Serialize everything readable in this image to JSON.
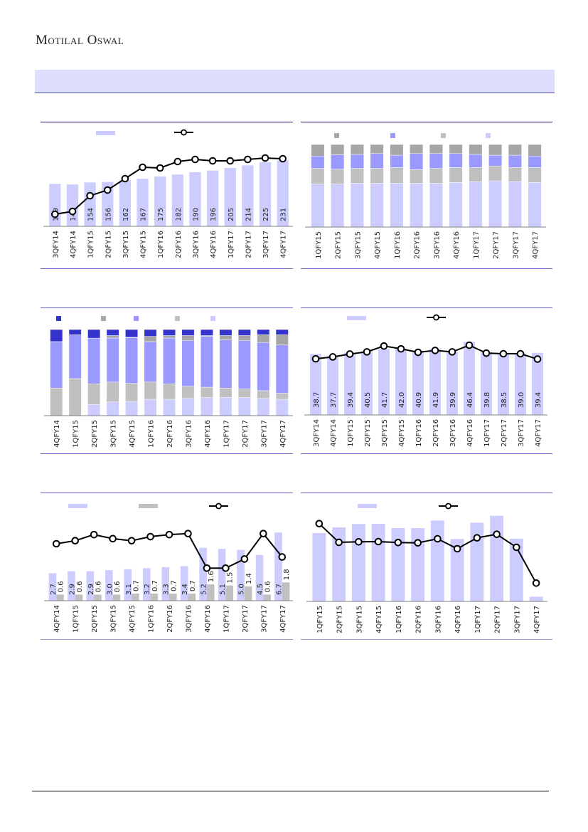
{
  "header": {
    "logo_text": "Motilal Oswal"
  },
  "colors": {
    "light_bar": "#ccccff",
    "blue": "#9999ff",
    "dark_blue": "#3333cc",
    "grey": "#c0c0c0",
    "dark_grey": "#a6a6a6",
    "line": "#000000",
    "band": "#dedeff"
  },
  "chart_data": [
    {
      "type": "bar+line",
      "categories": [
        "3QFY14",
        "4QFY14",
        "1QFY15",
        "2QFY15",
        "3QFY15",
        "4QFY15",
        "1QFY16",
        "2QFY16",
        "3QFY16",
        "4QFY16",
        "1QFY17",
        "2QFY17",
        "3QFY17",
        "4QFY17"
      ],
      "bars": [
        149,
        147,
        154,
        156,
        162,
        167,
        175,
        182,
        190,
        196,
        205,
        214,
        225,
        231
      ],
      "bar_labels": [
        "149",
        "147",
        "154",
        "156",
        "162",
        "167",
        "175",
        "182",
        "190",
        "196",
        "205",
        "214",
        "225",
        "231"
      ],
      "line": [
        17,
        21,
        43,
        51,
        67,
        83,
        82,
        91,
        94,
        92,
        92,
        94,
        96,
        95
      ],
      "ylim": [
        0,
        250
      ],
      "y2lim": [
        0,
        100
      ]
    },
    {
      "type": "stacked-bar",
      "categories": [
        "1QFY15",
        "2QFY15",
        "3QFY15",
        "4QFY15",
        "1QFY16",
        "2QFY16",
        "3QFY16",
        "4QFY16",
        "1QFY17",
        "2QFY17",
        "3QFY17",
        "4QFY17"
      ],
      "series": [
        {
          "name": "s1",
          "color": "#ccccff",
          "values": [
            52,
            52,
            53,
            53,
            53,
            53,
            53,
            54,
            55,
            56,
            55,
            54
          ]
        },
        {
          "name": "s2",
          "color": "#c0c0c0",
          "values": [
            19,
            18,
            18,
            18,
            19,
            16.5,
            18,
            18,
            17,
            18,
            17,
            18
          ]
        },
        {
          "name": "s3",
          "color": "#9999ff",
          "values": [
            15,
            17.5,
            17,
            18,
            15,
            19.5,
            18,
            17,
            16,
            13,
            15,
            14
          ]
        },
        {
          "name": "s4",
          "color": "#a6a6a6",
          "values": [
            14,
            12.5,
            12,
            11,
            13,
            11,
            11,
            11,
            12,
            13,
            13,
            14
          ]
        }
      ],
      "ylim": [
        0,
        100
      ]
    },
    {
      "type": "stacked-bar",
      "categories": [
        "4QFY14",
        "1QFY15",
        "2QFY15",
        "3QFY15",
        "4QFY15",
        "1QFY16",
        "2QFY16",
        "3QFY16",
        "4QFY16",
        "1QFY17",
        "2QFY17",
        "3QFY17",
        "4QFY17"
      ],
      "series": [
        {
          "name": "s1",
          "color": "#ccccff",
          "values": [
            0,
            0,
            13,
            16,
            16.5,
            19,
            19,
            20,
            21,
            21,
            21,
            20,
            19
          ]
        },
        {
          "name": "s2",
          "color": "#c0c0c0",
          "values": [
            32,
            43,
            24,
            23,
            21,
            20,
            18,
            14,
            12,
            11,
            10,
            9,
            7
          ]
        },
        {
          "name": "s3",
          "color": "#9999ff",
          "values": [
            54,
            51,
            53,
            51,
            53,
            47,
            53,
            53,
            59,
            56,
            56,
            56,
            56
          ]
        },
        {
          "name": "s4",
          "color": "#a6a6a6",
          "values": [
            0,
            0,
            0,
            3,
            0.5,
            6,
            3,
            6,
            1,
            5,
            6,
            9,
            12
          ]
        },
        {
          "name": "s5",
          "color": "#3333cc",
          "values": [
            14,
            6,
            10,
            7,
            9,
            8,
            7,
            7,
            7,
            7,
            7,
            6,
            6
          ]
        }
      ],
      "ylim": [
        0,
        100
      ]
    },
    {
      "type": "bar+line",
      "categories": [
        "3QFY14",
        "4QFY14",
        "1QFY15",
        "2QFY15",
        "3QFY15",
        "4QFY15",
        "1QFY16",
        "2QFY16",
        "3QFY16",
        "4QFY16",
        "1QFY17",
        "2QFY17",
        "3QFY17",
        "4QFY17"
      ],
      "bars": [
        38.7,
        37.7,
        39.4,
        40.5,
        41.7,
        42.0,
        40.9,
        41.9,
        39.9,
        46.4,
        39.8,
        38.5,
        39.0,
        39.4
      ],
      "bar_labels": [
        "38.7",
        "37.7",
        "39.4",
        "40.5",
        "41.7",
        "42.0",
        "40.9",
        "41.9",
        "39.9",
        "46.4",
        "39.8",
        "38.5",
        "39.0",
        "39.4"
      ],
      "line": [
        35.6,
        36.8,
        38.6,
        40.0,
        43.7,
        41.9,
        39.7,
        40.9,
        40.0,
        44.2,
        39.2,
        38.8,
        38.8,
        35.4
      ],
      "ylim": [
        0,
        51
      ],
      "y2lim": [
        0,
        51
      ]
    },
    {
      "type": "grouped-bar+line",
      "categories": [
        "4QFY14",
        "1QFY15",
        "2QFY15",
        "3QFY15",
        "4QFY15",
        "1QFY16",
        "2QFY16",
        "3QFY16",
        "4QFY16",
        "1QFY17",
        "2QFY17",
        "3QFY17",
        "4QFY17"
      ],
      "bars": [
        2.7,
        2.9,
        2.9,
        3.0,
        3.1,
        3.2,
        3.3,
        3.4,
        5.2,
        5.1,
        5.0,
        4.5,
        6.7
      ],
      "bar_labels": [
        "2.7",
        "2.9",
        "2.9",
        "3.0",
        "3.1",
        "3.2",
        "3.3",
        "3.4",
        "5.2",
        "5.1",
        "5.0",
        "4.5",
        "6.7"
      ],
      "bars2": [
        0.6,
        0.6,
        0.6,
        0.6,
        0.7,
        0.7,
        0.7,
        0.7,
        1.6,
        1.5,
        1.4,
        0.6,
        1.8
      ],
      "bar2_labels": [
        "0.6",
        "0.6",
        "0.6",
        "0.6",
        "0.7",
        "0.7",
        "0.7",
        "0.7",
        "1.6",
        "1.5",
        "1.4",
        "0.6",
        "1.8"
      ],
      "line": [
        5.6,
        5.9,
        6.5,
        6.1,
        5.9,
        6.3,
        6.5,
        6.6,
        3.2,
        3.2,
        4.1,
        6.6,
        4.3
      ],
      "ylim": [
        0,
        7
      ],
      "y2lim": [
        0,
        7
      ]
    },
    {
      "type": "bar+line",
      "categories": [
        "1QFY15",
        "2QFY15",
        "3QFY15",
        "4QFY15",
        "1QFY16",
        "2QFY16",
        "3QFY16",
        "4QFY16",
        "1QFY17",
        "2QFY17",
        "3QFY17",
        "4QFY17"
      ],
      "bars": [
        96,
        104,
        108.7,
        109,
        103,
        103,
        113.7,
        87.7,
        110.7,
        120.3,
        88,
        6.7
      ],
      "line": [
        109.3,
        83,
        83.7,
        84,
        82.7,
        82.3,
        88,
        74,
        89.3,
        94.3,
        76,
        25.7
      ],
      "ylim": [
        0,
        125
      ],
      "y2lim": [
        0,
        125
      ]
    }
  ]
}
